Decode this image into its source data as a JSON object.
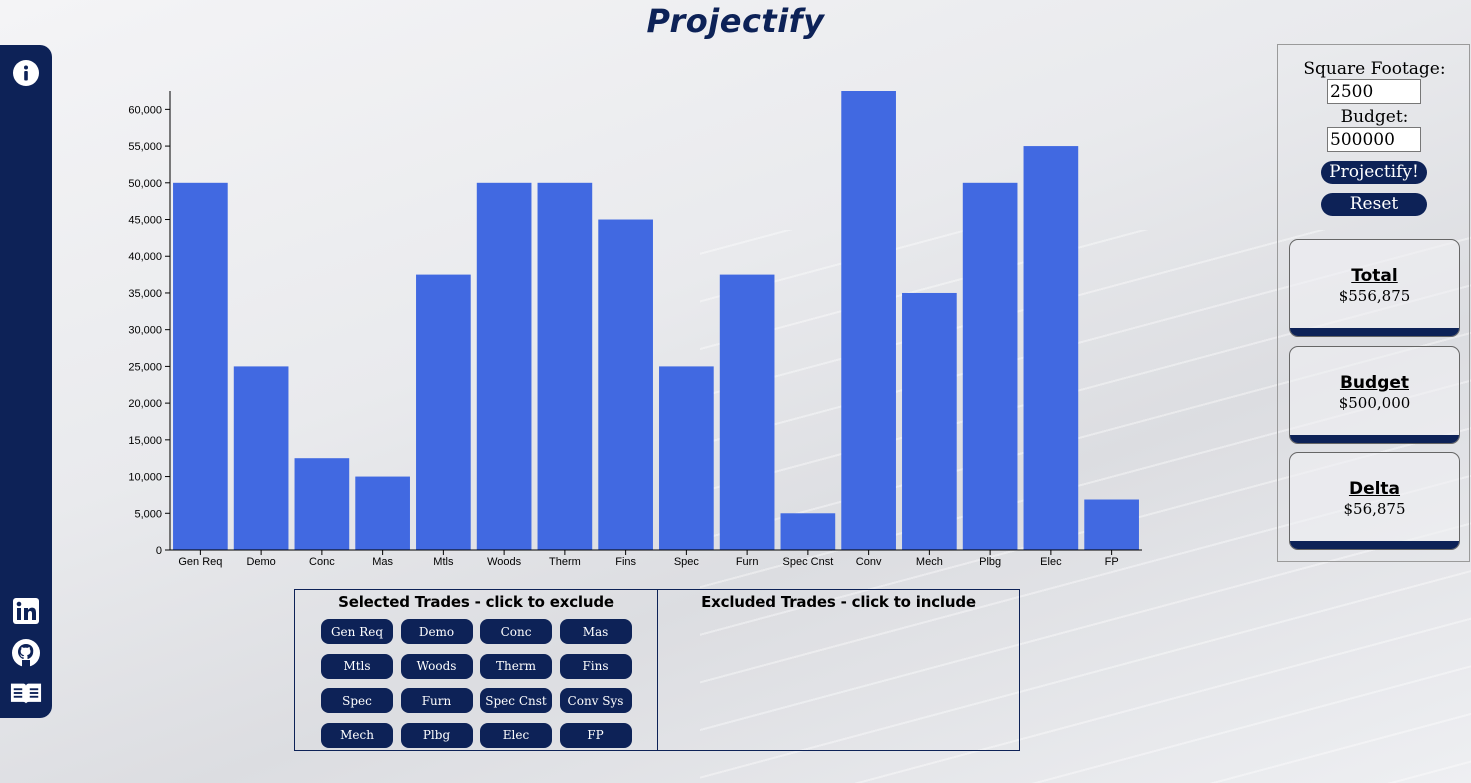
{
  "app": {
    "title": "Projectify"
  },
  "sidebar": {
    "top_icon": "info-icon",
    "bottom_icons": [
      "linkedin-icon",
      "github-icon",
      "book-reader-icon"
    ]
  },
  "colors": {
    "navy": "#0d2257",
    "bar": "#4169e1"
  },
  "chart_data": {
    "type": "bar",
    "categories": [
      "Gen Req",
      "Demo",
      "Conc",
      "Mas",
      "Mtls",
      "Woods",
      "Therm",
      "Fins",
      "Spec",
      "Furn",
      "Spec Cnst",
      "Conv",
      "Mech",
      "Plbg",
      "Elec",
      "FP"
    ],
    "values": [
      50000,
      25000,
      12500,
      10000,
      37500,
      50000,
      50000,
      45000,
      25000,
      37500,
      5000,
      62500,
      35000,
      50000,
      55000,
      6875
    ],
    "ylim": [
      0,
      62500
    ],
    "yticks": [
      0,
      5000,
      10000,
      15000,
      20000,
      25000,
      30000,
      35000,
      40000,
      45000,
      50000,
      55000,
      60000
    ],
    "ytick_labels": [
      "0",
      "5,000",
      "10,000",
      "15,000",
      "20,000",
      "25,000",
      "30,000",
      "35,000",
      "40,000",
      "45,000",
      "50,000",
      "55,000",
      "60,000"
    ],
    "grid": false
  },
  "trades": {
    "selected_heading": "Selected Trades - click to exclude",
    "excluded_heading": "Excluded Trades - click to include",
    "selected": [
      "Gen Req",
      "Demo",
      "Conc",
      "Mas",
      "Mtls",
      "Woods",
      "Therm",
      "Fins",
      "Spec",
      "Furn",
      "Spec Cnst",
      "Conv Sys",
      "Mech",
      "Plbg",
      "Elec",
      "FP"
    ],
    "excluded": []
  },
  "inputs": {
    "square_footage_label": "Square Footage:",
    "square_footage_value": "2500",
    "budget_label": "Budget:",
    "budget_value": "500000",
    "projectify_button": "Projectify!",
    "reset_button": "Reset"
  },
  "stats": {
    "total": {
      "title": "Total",
      "value": "$556,875"
    },
    "budget": {
      "title": "Budget",
      "value": "$500,000"
    },
    "delta": {
      "title": "Delta",
      "value": "$56,875"
    }
  }
}
